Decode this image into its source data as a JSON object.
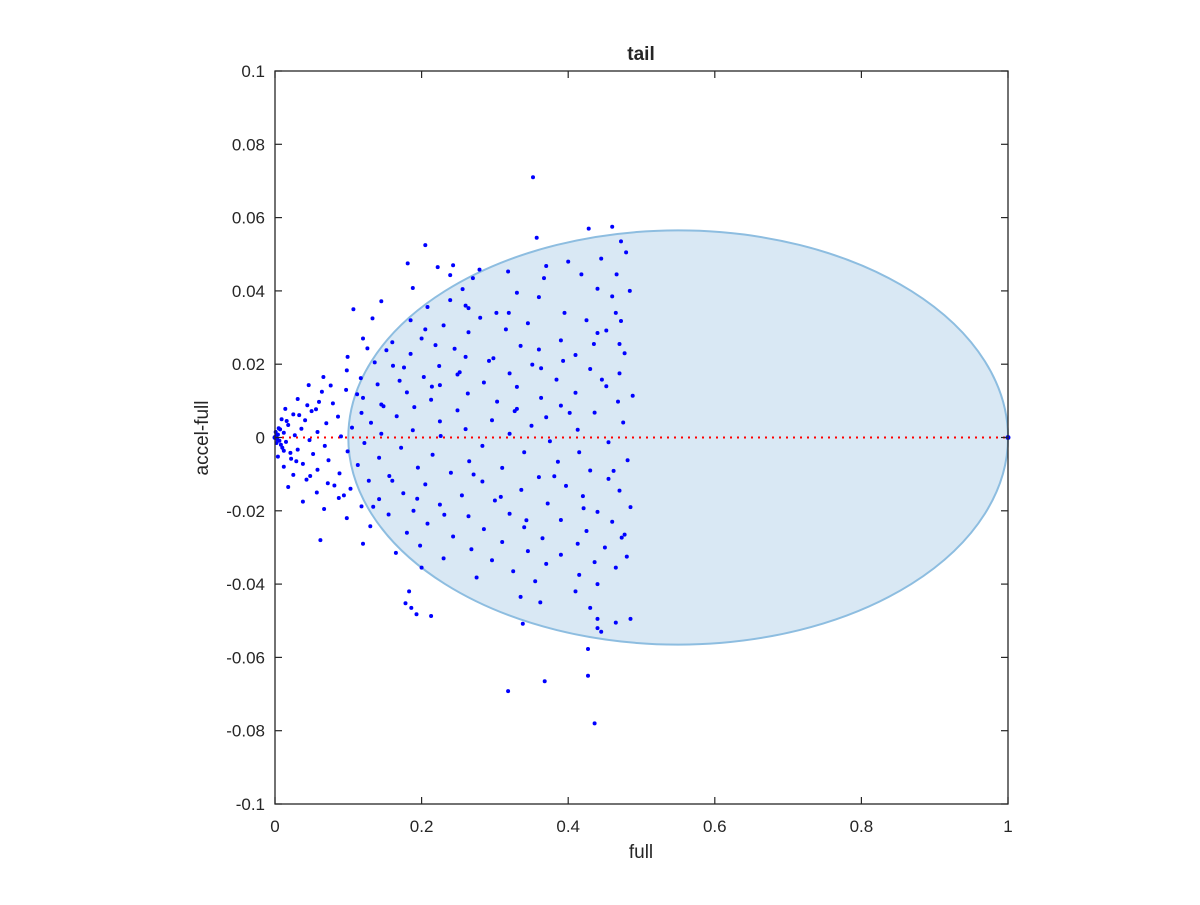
{
  "chart_data": {
    "type": "scatter",
    "title": "tail",
    "xlabel": "full",
    "ylabel": "accel-full",
    "xlim": [
      0,
      1
    ],
    "ylim": [
      -0.1,
      0.1
    ],
    "xticks": [
      "0",
      "0.2",
      "0.4",
      "0.6",
      "0.8",
      "1"
    ],
    "xtick_values": [
      0,
      0.2,
      0.4,
      0.6,
      0.8,
      1
    ],
    "yticks": [
      "0.1",
      "0.08",
      "0.06",
      "0.04",
      "0.02",
      "0",
      "-0.02",
      "-0.04",
      "-0.06",
      "-0.08",
      "-0.1"
    ],
    "ytick_values": [
      0.1,
      0.08,
      0.06,
      0.04,
      0.02,
      0,
      -0.02,
      -0.04,
      -0.06,
      -0.08,
      -0.1
    ],
    "grid": false,
    "ellipse": {
      "center": [
        0.55,
        0
      ],
      "x_radius": 0.45,
      "y_radius": 0.0565,
      "fill": "#d9e8f4",
      "stroke": "#8dbde0"
    },
    "reference_line": {
      "y": 0,
      "x_range": [
        0,
        1
      ],
      "style": "dotted",
      "color": "#ff0000"
    },
    "endpoints": [
      [
        0,
        0
      ],
      [
        1,
        0
      ]
    ],
    "marker_color": "#0000ff",
    "points": [
      [
        0.352,
        0.071
      ],
      [
        0.428,
        0.057
      ],
      [
        0.46,
        0.0575
      ],
      [
        0.472,
        0.0535
      ],
      [
        0.357,
        0.0545
      ],
      [
        0.205,
        0.0525
      ],
      [
        0.479,
        0.0505
      ],
      [
        0.181,
        0.0475
      ],
      [
        0.4,
        0.048
      ],
      [
        0.445,
        0.0488
      ],
      [
        0.37,
        0.0468
      ],
      [
        0.243,
        0.047
      ],
      [
        0.222,
        0.0465
      ],
      [
        0.279,
        0.0458
      ],
      [
        0.239,
        0.0443
      ],
      [
        0.318,
        0.0453
      ],
      [
        0.418,
        0.0445
      ],
      [
        0.466,
        0.0445
      ],
      [
        0.367,
        0.0435
      ],
      [
        0.27,
        0.0435
      ],
      [
        0.188,
        0.0408
      ],
      [
        0.256,
        0.0405
      ],
      [
        0.44,
        0.0406
      ],
      [
        0.484,
        0.04
      ],
      [
        0.33,
        0.0395
      ],
      [
        0.46,
        0.0385
      ],
      [
        0.36,
        0.0383
      ],
      [
        0.239,
        0.0375
      ],
      [
        0.145,
        0.0372
      ],
      [
        0.26,
        0.036
      ],
      [
        0.208,
        0.0356
      ],
      [
        0.264,
        0.0353
      ],
      [
        0.107,
        0.035
      ],
      [
        0.302,
        0.034
      ],
      [
        0.319,
        0.034
      ],
      [
        0.395,
        0.034
      ],
      [
        0.465,
        0.034
      ],
      [
        0.28,
        0.0327
      ],
      [
        0.133,
        0.0325
      ],
      [
        0.185,
        0.032
      ],
      [
        0.425,
        0.032
      ],
      [
        0.472,
        0.0318
      ],
      [
        0.23,
        0.0306
      ],
      [
        0.345,
        0.0312
      ],
      [
        0.205,
        0.0295
      ],
      [
        0.315,
        0.0295
      ],
      [
        0.44,
        0.0285
      ],
      [
        0.2,
        0.027
      ],
      [
        0.264,
        0.0287
      ],
      [
        0.12,
        0.027
      ],
      [
        0.39,
        0.0265
      ],
      [
        0.16,
        0.026
      ],
      [
        0.435,
        0.0255
      ],
      [
        0.47,
        0.0255
      ],
      [
        0.335,
        0.025
      ],
      [
        0.219,
        0.0252
      ],
      [
        0.126,
        0.0243
      ],
      [
        0.245,
        0.0242
      ],
      [
        0.36,
        0.024
      ],
      [
        0.152,
        0.0238
      ],
      [
        0.41,
        0.0225
      ],
      [
        0.477,
        0.023
      ],
      [
        0.185,
        0.0228
      ],
      [
        0.298,
        0.0216
      ],
      [
        0.099,
        0.022
      ],
      [
        0.26,
        0.022
      ],
      [
        0.136,
        0.0205
      ],
      [
        0.393,
        0.0209
      ],
      [
        0.351,
        0.0199
      ],
      [
        0.224,
        0.0195
      ],
      [
        0.161,
        0.0196
      ],
      [
        0.098,
        0.0183
      ],
      [
        0.43,
        0.0187
      ],
      [
        0.47,
        0.0175
      ],
      [
        0.32,
        0.0175
      ],
      [
        0.249,
        0.0172
      ],
      [
        0.066,
        0.0165
      ],
      [
        0.117,
        0.0162
      ],
      [
        0.203,
        0.0165
      ],
      [
        0.384,
        0.0158
      ],
      [
        0.17,
        0.0155
      ],
      [
        0.285,
        0.015
      ],
      [
        0.046,
        0.0143
      ],
      [
        0.14,
        0.0145
      ],
      [
        0.225,
        0.0143
      ],
      [
        0.33,
        0.0138
      ],
      [
        0.452,
        0.014
      ],
      [
        0.097,
        0.013
      ],
      [
        0.064,
        0.0125
      ],
      [
        0.18,
        0.0123
      ],
      [
        0.263,
        0.012
      ],
      [
        0.41,
        0.0122
      ],
      [
        0.363,
        0.0108
      ],
      [
        0.12,
        0.0108
      ],
      [
        0.031,
        0.0105
      ],
      [
        0.213,
        0.0103
      ],
      [
        0.468,
        0.0098
      ],
      [
        0.303,
        0.0098
      ],
      [
        0.079,
        0.0093
      ],
      [
        0.145,
        0.009
      ],
      [
        0.044,
        0.0088
      ],
      [
        0.19,
        0.0083
      ],
      [
        0.39,
        0.0087
      ],
      [
        0.014,
        0.0078
      ],
      [
        0.056,
        0.0077
      ],
      [
        0.33,
        0.0078
      ],
      [
        0.249,
        0.0074
      ],
      [
        0.118,
        0.0067
      ],
      [
        0.436,
        0.0068
      ],
      [
        0.025,
        0.0063
      ],
      [
        0.086,
        0.0057
      ],
      [
        0.166,
        0.0058
      ],
      [
        0.37,
        0.0055
      ],
      [
        0.009,
        0.005
      ],
      [
        0.041,
        0.0047
      ],
      [
        0.296,
        0.0047
      ],
      [
        0.225,
        0.0044
      ],
      [
        0.131,
        0.004
      ],
      [
        0.07,
        0.0039
      ],
      [
        0.475,
        0.0041
      ],
      [
        0.018,
        0.0034
      ],
      [
        0.35,
        0.0032
      ],
      [
        0.105,
        0.0027
      ],
      [
        0.005,
        0.0025
      ],
      [
        0.036,
        0.0024
      ],
      [
        0.26,
        0.0023
      ],
      [
        0.188,
        0.002
      ],
      [
        0.413,
        0.0021
      ],
      [
        0.058,
        0.0015
      ],
      [
        0.012,
        0.0013
      ],
      [
        0.145,
        0.001
      ],
      [
        0.32,
        0.001
      ],
      [
        0.002,
        0.0005
      ],
      [
        0.027,
        0.0006
      ],
      [
        0.09,
        0.0003
      ],
      [
        0.226,
        0.0004
      ],
      [
        0.003,
        -0.0005
      ],
      [
        0.047,
        -0.0007
      ],
      [
        0.015,
        -0.0012
      ],
      [
        0.375,
        -0.001
      ],
      [
        0.122,
        -0.0015
      ],
      [
        0.455,
        -0.0013
      ],
      [
        0.008,
        -0.002
      ],
      [
        0.068,
        -0.0023
      ],
      [
        0.283,
        -0.0023
      ],
      [
        0.172,
        -0.0028
      ],
      [
        0.031,
        -0.0033
      ],
      [
        0.012,
        -0.0036
      ],
      [
        0.099,
        -0.0038
      ],
      [
        0.34,
        -0.004
      ],
      [
        0.415,
        -0.004
      ],
      [
        0.052,
        -0.0045
      ],
      [
        0.215,
        -0.0047
      ],
      [
        0.004,
        -0.0052
      ],
      [
        0.142,
        -0.0055
      ],
      [
        0.022,
        -0.0058
      ],
      [
        0.073,
        -0.0062
      ],
      [
        0.481,
        -0.0062
      ],
      [
        0.265,
        -0.0065
      ],
      [
        0.386,
        -0.0066
      ],
      [
        0.038,
        -0.0072
      ],
      [
        0.113,
        -0.0075
      ],
      [
        0.012,
        -0.008
      ],
      [
        0.195,
        -0.0082
      ],
      [
        0.31,
        -0.0083
      ],
      [
        0.058,
        -0.0088
      ],
      [
        0.43,
        -0.009
      ],
      [
        0.24,
        -0.0096
      ],
      [
        0.088,
        -0.0098
      ],
      [
        0.025,
        -0.0102
      ],
      [
        0.156,
        -0.0105
      ],
      [
        0.36,
        -0.0108
      ],
      [
        0.455,
        -0.0113
      ],
      [
        0.043,
        -0.0115
      ],
      [
        0.128,
        -0.0118
      ],
      [
        0.283,
        -0.012
      ],
      [
        0.072,
        -0.0125
      ],
      [
        0.205,
        -0.0128
      ],
      [
        0.397,
        -0.0132
      ],
      [
        0.018,
        -0.0135
      ],
      [
        0.103,
        -0.014
      ],
      [
        0.336,
        -0.0143
      ],
      [
        0.47,
        -0.0145
      ],
      [
        0.057,
        -0.015
      ],
      [
        0.175,
        -0.0152
      ],
      [
        0.255,
        -0.0158
      ],
      [
        0.42,
        -0.016
      ],
      [
        0.087,
        -0.0165
      ],
      [
        0.142,
        -0.0168
      ],
      [
        0.3,
        -0.0172
      ],
      [
        0.038,
        -0.0175
      ],
      [
        0.372,
        -0.018
      ],
      [
        0.225,
        -0.0183
      ],
      [
        0.118,
        -0.0188
      ],
      [
        0.485,
        -0.019
      ],
      [
        0.067,
        -0.0195
      ],
      [
        0.189,
        -0.02
      ],
      [
        0.44,
        -0.0203
      ],
      [
        0.32,
        -0.0208
      ],
      [
        0.155,
        -0.021
      ],
      [
        0.264,
        -0.0215
      ],
      [
        0.098,
        -0.022
      ],
      [
        0.39,
        -0.0225
      ],
      [
        0.46,
        -0.023
      ],
      [
        0.208,
        -0.0235
      ],
      [
        0.13,
        -0.0242
      ],
      [
        0.34,
        -0.0245
      ],
      [
        0.285,
        -0.025
      ],
      [
        0.425,
        -0.0255
      ],
      [
        0.18,
        -0.026
      ],
      [
        0.477,
        -0.0265
      ],
      [
        0.243,
        -0.027
      ],
      [
        0.365,
        -0.0275
      ],
      [
        0.062,
        -0.028
      ],
      [
        0.31,
        -0.0285
      ],
      [
        0.413,
        -0.029
      ],
      [
        0.12,
        -0.029
      ],
      [
        0.198,
        -0.0295
      ],
      [
        0.45,
        -0.03
      ],
      [
        0.268,
        -0.0305
      ],
      [
        0.345,
        -0.031
      ],
      [
        0.165,
        -0.0315
      ],
      [
        0.39,
        -0.032
      ],
      [
        0.48,
        -0.0325
      ],
      [
        0.23,
        -0.033
      ],
      [
        0.296,
        -0.0335
      ],
      [
        0.436,
        -0.034
      ],
      [
        0.37,
        -0.0345
      ],
      [
        0.2,
        -0.0355
      ],
      [
        0.465,
        -0.0355
      ],
      [
        0.325,
        -0.0365
      ],
      [
        0.415,
        -0.0375
      ],
      [
        0.275,
        -0.0382
      ],
      [
        0.355,
        -0.0392
      ],
      [
        0.44,
        -0.04
      ],
      [
        0.183,
        -0.042
      ],
      [
        0.41,
        -0.042
      ],
      [
        0.335,
        -0.0435
      ],
      [
        0.178,
        -0.0452
      ],
      [
        0.362,
        -0.045
      ],
      [
        0.186,
        -0.0465
      ],
      [
        0.43,
        -0.0465
      ],
      [
        0.193,
        -0.0482
      ],
      [
        0.213,
        -0.0487
      ],
      [
        0.44,
        -0.0495
      ],
      [
        0.338,
        -0.0508
      ],
      [
        0.465,
        -0.0505
      ],
      [
        0.485,
        -0.0495
      ],
      [
        0.44,
        -0.052
      ],
      [
        0.445,
        -0.053
      ],
      [
        0.427,
        -0.0577
      ],
      [
        0.427,
        -0.065
      ],
      [
        0.368,
        -0.0665
      ],
      [
        0.318,
        -0.0692
      ],
      [
        0.436,
        -0.078
      ],
      [
        0.0,
        0.0
      ],
      [
        0.001,
        0.0015
      ],
      [
        0.002,
        -0.0015
      ],
      [
        0.004,
        0.0008
      ],
      [
        0.006,
        -0.0009
      ],
      [
        0.007,
        0.0022
      ],
      [
        0.01,
        -0.0028
      ],
      [
        0.016,
        0.0045
      ],
      [
        0.021,
        -0.0042
      ],
      [
        0.033,
        0.0061
      ],
      [
        0.029,
        -0.0065
      ],
      [
        0.05,
        0.0072
      ],
      [
        0.048,
        -0.0105
      ],
      [
        0.06,
        0.0097
      ],
      [
        0.081,
        -0.0131
      ],
      [
        0.076,
        0.0142
      ],
      [
        0.094,
        -0.0158
      ],
      [
        0.112,
        0.0118
      ],
      [
        0.134,
        -0.0189
      ],
      [
        0.148,
        0.0085
      ],
      [
        0.16,
        -0.0118
      ],
      [
        0.176,
        0.0191
      ],
      [
        0.194,
        -0.0167
      ],
      [
        0.214,
        0.0139
      ],
      [
        0.231,
        -0.0211
      ],
      [
        0.252,
        0.0178
      ],
      [
        0.271,
        -0.0101
      ],
      [
        0.292,
        0.0209
      ],
      [
        0.308,
        -0.0162
      ],
      [
        0.327,
        0.0072
      ],
      [
        0.343,
        -0.0226
      ],
      [
        0.363,
        0.0189
      ],
      [
        0.381,
        -0.0106
      ],
      [
        0.402,
        0.0067
      ],
      [
        0.421,
        -0.0193
      ],
      [
        0.446,
        0.0158
      ],
      [
        0.462,
        -0.0091
      ],
      [
        0.488,
        0.0114
      ],
      [
        0.473,
        -0.0273
      ],
      [
        0.452,
        0.0292
      ]
    ]
  }
}
